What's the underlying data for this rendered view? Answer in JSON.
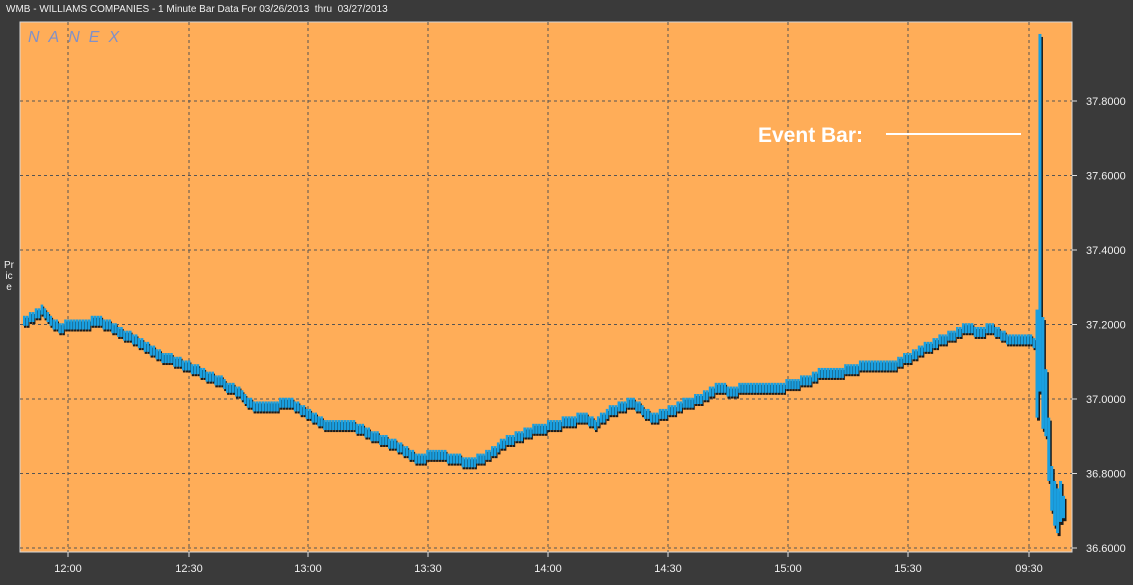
{
  "title": "WMB - WILLIAMS COMPANIES - 1 Minute Bar Data For 03/26/2013  thru  03/27/2013",
  "watermark": "NANEX",
  "colors": {
    "plot_bg": "#ffad58",
    "frame_bg": "#3a3a3a",
    "bar": "#1a9fe0",
    "bar_shadow": "#1a1a1a",
    "text": "#f0f0f0"
  },
  "chart_data": {
    "type": "bar",
    "ylabel": "Price",
    "ylim": [
      36.58,
      38.0
    ],
    "yticks": [
      {
        "value": 37.8,
        "label": "37.8000"
      },
      {
        "value": 37.6,
        "label": "37.6000"
      },
      {
        "value": 37.4,
        "label": "37.4000"
      },
      {
        "value": 37.2,
        "label": "37.2000"
      },
      {
        "value": 37.0,
        "label": "37.0000"
      },
      {
        "value": 36.8,
        "label": "36.8000"
      },
      {
        "value": 36.6,
        "label": "36.6000"
      }
    ],
    "xticks": [
      "12:00",
      "12:30",
      "13:00",
      "13:30",
      "14:00",
      "14:30",
      "15:00",
      "15:30",
      "09:30"
    ],
    "annotation": "Event Bar:",
    "price_path": [
      [
        0,
        37.21
      ],
      [
        3,
        37.22
      ],
      [
        6,
        37.24
      ],
      [
        9,
        37.21
      ],
      [
        12,
        37.19
      ],
      [
        15,
        37.2
      ],
      [
        20,
        37.2
      ],
      [
        25,
        37.21
      ],
      [
        28,
        37.2
      ],
      [
        32,
        37.18
      ],
      [
        38,
        37.16
      ],
      [
        45,
        37.12
      ],
      [
        52,
        37.1
      ],
      [
        58,
        37.08
      ],
      [
        62,
        37.06
      ],
      [
        66,
        37.05
      ],
      [
        70,
        37.03
      ],
      [
        74,
        37.01
      ],
      [
        78,
        36.98
      ],
      [
        84,
        36.98
      ],
      [
        90,
        36.99
      ],
      [
        94,
        36.97
      ],
      [
        98,
        36.95
      ],
      [
        102,
        36.93
      ],
      [
        112,
        36.93
      ],
      [
        116,
        36.91
      ],
      [
        122,
        36.89
      ],
      [
        128,
        36.87
      ],
      [
        133,
        36.84
      ],
      [
        140,
        36.85
      ],
      [
        146,
        36.84
      ],
      [
        151,
        36.83
      ],
      [
        156,
        36.84
      ],
      [
        160,
        36.86
      ],
      [
        164,
        36.89
      ],
      [
        168,
        36.9
      ],
      [
        174,
        36.92
      ],
      [
        180,
        36.93
      ],
      [
        186,
        36.94
      ],
      [
        190,
        36.95
      ],
      [
        194,
        36.93
      ],
      [
        198,
        36.96
      ],
      [
        202,
        36.98
      ],
      [
        207,
        36.99
      ],
      [
        211,
        36.96
      ],
      [
        214,
        36.95
      ],
      [
        218,
        36.96
      ],
      [
        222,
        36.98
      ],
      [
        226,
        36.99
      ],
      [
        232,
        37.01
      ],
      [
        236,
        37.03
      ],
      [
        240,
        37.02
      ],
      [
        245,
        37.03
      ],
      [
        255,
        37.03
      ],
      [
        262,
        37.04
      ],
      [
        266,
        37.05
      ],
      [
        271,
        37.07
      ],
      [
        276,
        37.07
      ],
      [
        281,
        37.08
      ],
      [
        286,
        37.09
      ],
      [
        291,
        37.09
      ],
      [
        296,
        37.09
      ],
      [
        300,
        37.11
      ],
      [
        305,
        37.13
      ],
      [
        309,
        37.15
      ],
      [
        315,
        37.17
      ],
      [
        320,
        37.19
      ],
      [
        324,
        37.18
      ],
      [
        329,
        37.19
      ],
      [
        334,
        37.16
      ],
      [
        340,
        37.16
      ],
      [
        344,
        37.15
      ]
    ],
    "event_bars": [
      {
        "minute": 344,
        "high": 37.24,
        "low": 36.95
      },
      {
        "minute": 345,
        "high": 37.98,
        "low": 37.02
      },
      {
        "minute": 346,
        "high": 37.22,
        "low": 36.92
      },
      {
        "minute": 347,
        "high": 37.08,
        "low": 36.9
      },
      {
        "minute": 348,
        "high": 36.95,
        "low": 36.78
      },
      {
        "minute": 349,
        "high": 36.82,
        "low": 36.7
      },
      {
        "minute": 350,
        "high": 36.78,
        "low": 36.66
      },
      {
        "minute": 351,
        "high": 36.76,
        "low": 36.64
      },
      {
        "minute": 352,
        "high": 36.78,
        "low": 36.67
      },
      {
        "minute": 353,
        "high": 36.74,
        "low": 36.68
      }
    ]
  }
}
